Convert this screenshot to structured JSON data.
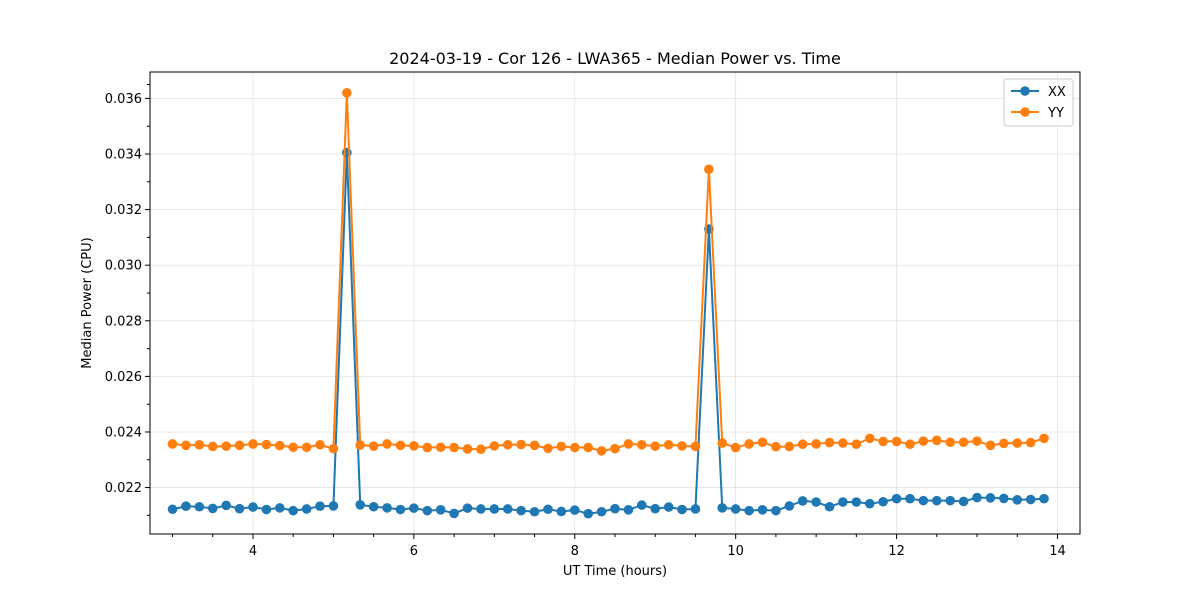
{
  "chart_data": {
    "type": "line",
    "title": "2024-03-19 - Cor 126 - LWA365 - Median Power vs. Time",
    "xlabel": "UT Time (hours)",
    "ylabel": "Median Power (CPU)",
    "xlim": [
      2.72,
      14.28
    ],
    "ylim": [
      0.02033,
      0.03695
    ],
    "xticks": [
      4,
      6,
      8,
      10,
      12,
      14
    ],
    "xtick_labels": [
      "4",
      "6",
      "8",
      "10",
      "12",
      "14"
    ],
    "yticks": [
      0.022,
      0.024,
      0.026,
      0.028,
      0.03,
      0.032,
      0.034,
      0.036
    ],
    "ytick_labels": [
      "0.022",
      "0.024",
      "0.026",
      "0.028",
      "0.030",
      "0.032",
      "0.034",
      "0.036"
    ],
    "grid": true,
    "legend_position": "top-right",
    "x": [
      3.0,
      3.167,
      3.333,
      3.5,
      3.667,
      3.833,
      4.0,
      4.167,
      4.333,
      4.5,
      4.667,
      4.833,
      5.0,
      5.167,
      5.333,
      5.5,
      5.667,
      5.833,
      6.0,
      6.167,
      6.333,
      6.5,
      6.667,
      6.833,
      7.0,
      7.167,
      7.333,
      7.5,
      7.667,
      7.833,
      8.0,
      8.167,
      8.333,
      8.5,
      8.667,
      8.833,
      9.0,
      9.167,
      9.333,
      9.5,
      9.667,
      9.833,
      10.0,
      10.167,
      10.333,
      10.5,
      10.667,
      10.833,
      11.0,
      11.167,
      11.333,
      11.5,
      11.667,
      11.833,
      12.0,
      12.167,
      12.333,
      12.5,
      12.667,
      12.833,
      13.0,
      13.167,
      13.333,
      13.5,
      13.667,
      13.833
    ],
    "series": [
      {
        "name": "XX",
        "color": "#1f77b4",
        "values": [
          0.02122,
          0.02133,
          0.02131,
          0.02125,
          0.02136,
          0.02124,
          0.0213,
          0.02121,
          0.02127,
          0.02117,
          0.02123,
          0.02133,
          0.02134,
          0.03405,
          0.02138,
          0.02131,
          0.02127,
          0.02121,
          0.02126,
          0.02117,
          0.0212,
          0.02107,
          0.02126,
          0.02123,
          0.02123,
          0.02123,
          0.02117,
          0.02113,
          0.02122,
          0.02114,
          0.02119,
          0.02106,
          0.02113,
          0.02124,
          0.0212,
          0.02137,
          0.02124,
          0.0213,
          0.02121,
          0.02123,
          0.0313,
          0.02127,
          0.02123,
          0.02117,
          0.0212,
          0.02117,
          0.02134,
          0.02152,
          0.02148,
          0.02131,
          0.02148,
          0.02148,
          0.02142,
          0.02149,
          0.0216,
          0.0216,
          0.02153,
          0.02153,
          0.02153,
          0.0215,
          0.02164,
          0.02163,
          0.02161,
          0.02156,
          0.02157,
          0.0216
        ]
      },
      {
        "name": "YY",
        "color": "#ff7f0e",
        "values": [
          0.02357,
          0.02352,
          0.02354,
          0.02348,
          0.02349,
          0.02352,
          0.02357,
          0.02355,
          0.02351,
          0.02345,
          0.02345,
          0.02354,
          0.0234,
          0.0362,
          0.02353,
          0.02349,
          0.02357,
          0.02352,
          0.0235,
          0.02344,
          0.02345,
          0.02344,
          0.02339,
          0.02338,
          0.0235,
          0.02354,
          0.02355,
          0.02352,
          0.02341,
          0.02348,
          0.02344,
          0.02344,
          0.02332,
          0.0234,
          0.02357,
          0.02354,
          0.02349,
          0.02354,
          0.0235,
          0.02348,
          0.03345,
          0.0236,
          0.02344,
          0.02357,
          0.02363,
          0.02347,
          0.02348,
          0.02356,
          0.02357,
          0.02362,
          0.0236,
          0.02356,
          0.02377,
          0.02366,
          0.02366,
          0.02356,
          0.02367,
          0.0237,
          0.02363,
          0.02363,
          0.02367,
          0.02352,
          0.02359,
          0.0236,
          0.02362,
          0.02377
        ]
      }
    ]
  }
}
